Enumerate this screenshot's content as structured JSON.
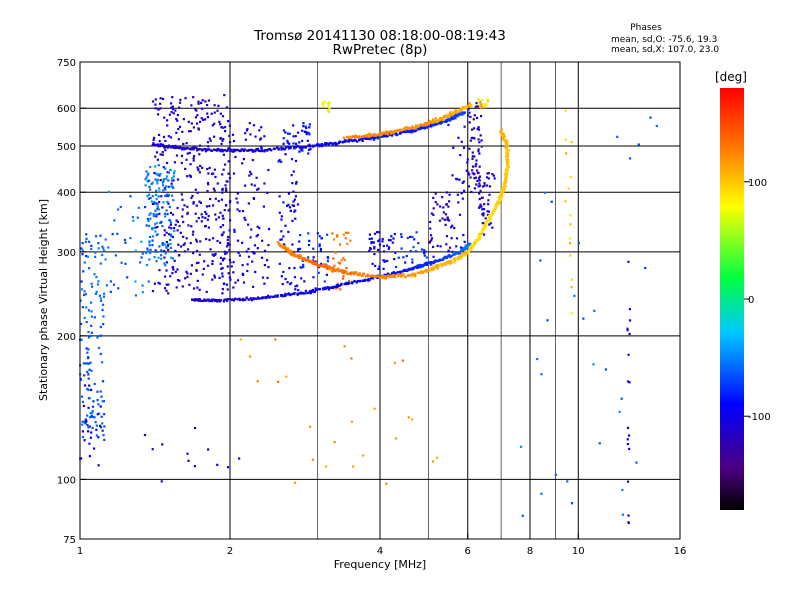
{
  "header": {
    "title": "Tromsø 20141130 08:18:00-08:19:43",
    "subtitle": "RwPretec (8p)"
  },
  "phase_box": {
    "heading": "Phases",
    "line_o": "mean, sd,O: -75.6, 19.3",
    "line_x": "mean, sd,X: 107.0, 23.0"
  },
  "colorbar": {
    "unit_label": "[deg]",
    "range": [
      -180,
      180
    ],
    "tick_labels": [
      "100",
      "0",
      "-100"
    ],
    "tick_values": [
      100,
      0,
      -100
    ]
  },
  "chart_data": {
    "type": "scatter",
    "xlabel": "Frequency [MHz]",
    "ylabel": "Stationary phase Virtual Height [km]",
    "xscale": "log",
    "yscale": "log",
    "xlim": [
      1,
      16
    ],
    "ylim": [
      75,
      750
    ],
    "x_ticks": [
      1,
      2,
      4,
      6,
      8,
      10,
      16
    ],
    "x_tick_labels": [
      "1",
      "2",
      "4",
      "6",
      "8",
      "10",
      "16"
    ],
    "y_ticks": [
      75,
      100,
      200,
      300,
      400,
      500,
      600,
      750
    ],
    "y_tick_labels": [
      "75",
      "100",
      "200",
      "300",
      "400",
      "500",
      "600",
      "750"
    ],
    "grid": true,
    "minor_x_lines": [
      3,
      5,
      7,
      9
    ],
    "color_encodes": "phase [deg]",
    "traces": [
      {
        "x": [
          1.68,
          1.9,
          2.3,
          2.8,
          3.3,
          4.0,
          4.6,
          5.2,
          5.8,
          6.05
        ],
        "y": [
          238,
          237,
          240,
          246,
          255,
          266,
          276,
          287,
          300,
          312
        ],
        "phase": [
          -115,
          -110,
          -105,
          -100,
          -95,
          -90,
          -85,
          -75,
          -60,
          -50
        ],
        "spread": 0.01
      },
      {
        "x": [
          2.5,
          2.7,
          3.0,
          3.4,
          4.0,
          4.6,
          5.2,
          5.7,
          6.0
        ],
        "y": [
          312,
          295,
          282,
          272,
          266,
          268,
          278,
          290,
          300
        ],
        "phase": [
          125,
          130,
          135,
          130,
          125,
          120,
          110,
          105,
          100
        ],
        "spread": 0.012
      },
      {
        "x": [
          6.0,
          6.3,
          6.6,
          6.9,
          7.1,
          7.2,
          7.2,
          7.0
        ],
        "y": [
          300,
          320,
          350,
          380,
          410,
          450,
          500,
          540
        ],
        "phase": [
          95,
          90,
          90,
          95,
          100,
          100,
          105,
          110
        ],
        "spread": 0.01
      },
      {
        "x": [
          1.4,
          1.6,
          1.9,
          2.3,
          2.8,
          3.3,
          3.9,
          4.5,
          5.0,
          5.5,
          5.9
        ],
        "y": [
          505,
          495,
          490,
          490,
          498,
          508,
          520,
          535,
          550,
          568,
          590
        ],
        "phase": [
          -110,
          -110,
          -108,
          -105,
          -100,
          -95,
          -90,
          -85,
          -80,
          -75,
          -70
        ],
        "spread": 0.01
      },
      {
        "x": [
          3.4,
          3.9,
          4.4,
          4.9,
          5.3,
          5.7,
          6.1
        ],
        "y": [
          520,
          528,
          540,
          555,
          570,
          590,
          612
        ],
        "phase": [
          125,
          125,
          120,
          120,
          115,
          110,
          105
        ],
        "spread": 0.012
      }
    ],
    "clusters": [
      {
        "x": [
          1.4,
          2.0
        ],
        "y": [
          245,
          640
        ],
        "phase": -110,
        "count": 360
      },
      {
        "x": [
          1.9,
          2.4
        ],
        "y": [
          250,
          560
        ],
        "phase": -105,
        "count": 140
      },
      {
        "x": [
          1.35,
          1.55
        ],
        "y": [
          280,
          460
        ],
        "phase": -55,
        "count": 130
      },
      {
        "x": [
          1.0,
          1.12
        ],
        "y": [
          120,
          330
        ],
        "phase": -65,
        "count": 140
      },
      {
        "x": [
          1.0,
          1.1
        ],
        "y": [
          105,
          160
        ],
        "phase": -100,
        "count": 25
      },
      {
        "x": [
          1.12,
          1.4
        ],
        "y": [
          240,
          420
        ],
        "phase": -60,
        "count": 45
      },
      {
        "x": [
          2.5,
          2.75
        ],
        "y": [
          245,
          470
        ],
        "phase": -100,
        "count": 60
      },
      {
        "x": [
          2.55,
          2.9
        ],
        "y": [
          480,
          560
        ],
        "phase": -90,
        "count": 40
      },
      {
        "x": [
          2.75,
          3.2
        ],
        "y": [
          260,
          330
        ],
        "phase": -80,
        "count": 40
      },
      {
        "x": [
          3.2,
          3.5
        ],
        "y": [
          250,
          330
        ],
        "phase": 130,
        "count": 35
      },
      {
        "x": [
          3.8,
          4.3
        ],
        "y": [
          270,
          330
        ],
        "phase": -100,
        "count": 45
      },
      {
        "x": [
          4.3,
          5.0
        ],
        "y": [
          275,
          330
        ],
        "phase": -80,
        "count": 25
      },
      {
        "x": [
          5.0,
          5.6
        ],
        "y": [
          290,
          400
        ],
        "phase": -120,
        "count": 35
      },
      {
        "x": [
          5.4,
          6.0
        ],
        "y": [
          300,
          560
        ],
        "phase": -100,
        "count": 40
      },
      {
        "x": [
          6.0,
          6.4
        ],
        "y": [
          400,
          620
        ],
        "phase": -115,
        "count": 70
      },
      {
        "x": [
          6.3,
          6.8
        ],
        "y": [
          320,
          440
        ],
        "phase": -110,
        "count": 40
      },
      {
        "x": [
          3.05,
          3.2
        ],
        "y": [
          590,
          620
        ],
        "phase": 80,
        "count": 15
      },
      {
        "x": [
          6.3,
          6.6
        ],
        "y": [
          600,
          630
        ],
        "phase": 95,
        "count": 15
      },
      {
        "x": [
          9.4,
          9.7
        ],
        "y": [
          200,
          610
        ],
        "phase": 95,
        "count": 15
      },
      {
        "x": [
          12.5,
          12.7
        ],
        "y": [
          80,
          340
        ],
        "phase": -110,
        "count": 18
      },
      {
        "x": [
          7.5,
          14.5
        ],
        "y": [
          80,
          660
        ],
        "phase": -60,
        "count": 30
      },
      {
        "x": [
          2.0,
          5.5
        ],
        "y": [
          85,
          200
        ],
        "phase": 120,
        "count": 25
      },
      {
        "x": [
          1.3,
          2.2
        ],
        "y": [
          95,
          130
        ],
        "phase": -110,
        "count": 12
      }
    ]
  }
}
